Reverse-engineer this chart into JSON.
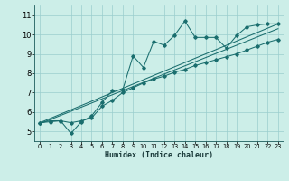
{
  "xlabel": "Humidex (Indice chaleur)",
  "bg_color": "#cceee8",
  "grid_color": "#9acece",
  "line_color": "#1a6e6e",
  "xlim": [
    -0.5,
    23.5
  ],
  "ylim": [
    4.5,
    11.5
  ],
  "xticks": [
    0,
    1,
    2,
    3,
    4,
    5,
    6,
    7,
    8,
    9,
    10,
    11,
    12,
    13,
    14,
    15,
    16,
    17,
    18,
    19,
    20,
    21,
    22,
    23
  ],
  "yticks": [
    5,
    6,
    7,
    8,
    9,
    10,
    11
  ],
  "jagged": [
    5.45,
    5.55,
    5.55,
    4.9,
    5.5,
    5.8,
    6.5,
    7.1,
    7.15,
    8.9,
    8.3,
    9.65,
    9.45,
    9.95,
    10.7,
    9.85,
    9.85,
    9.85,
    9.3,
    9.95,
    10.4,
    10.5,
    10.55,
    10.55
  ],
  "trend1_x": [
    0,
    23
  ],
  "trend1_y": [
    5.45,
    10.55
  ],
  "trend2_x": [
    0,
    23
  ],
  "trend2_y": [
    5.4,
    10.3
  ],
  "smooth_x": [
    0,
    1,
    2,
    3,
    4,
    5,
    6,
    7,
    8,
    9,
    10,
    11,
    12,
    13,
    14,
    15,
    16,
    17,
    18,
    19,
    20,
    21,
    22,
    23
  ],
  "smooth_y": [
    5.45,
    5.5,
    5.55,
    5.45,
    5.55,
    5.7,
    6.3,
    6.6,
    7.0,
    7.25,
    7.5,
    7.7,
    7.85,
    8.05,
    8.2,
    8.4,
    8.55,
    8.7,
    8.85,
    9.0,
    9.2,
    9.4,
    9.6,
    9.75
  ]
}
